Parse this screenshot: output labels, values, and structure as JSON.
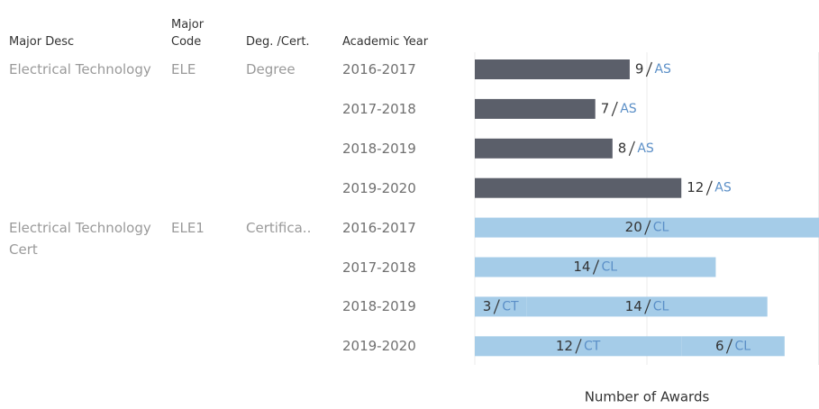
{
  "chart_data": {
    "type": "bar",
    "orientation": "horizontal",
    "stacked": true,
    "column_headers": [
      "Major Desc",
      "Major Code",
      "Deg. /Cert.",
      "Academic Year"
    ],
    "groups": [
      {
        "major_desc": "Electrical Technology",
        "major_code": "ELE",
        "deg_cert": "Degree",
        "rows": [
          0,
          1,
          2,
          3
        ]
      },
      {
        "major_desc": "Electrical Technology Cert",
        "major_code": "ELE1",
        "deg_cert": "Certifica..",
        "rows": [
          4,
          5,
          6,
          7
        ]
      }
    ],
    "categories": [
      "2016-2017",
      "2017-2018",
      "2018-2019",
      "2019-2020",
      "2016-2017",
      "2017-2018",
      "2018-2019",
      "2019-2020"
    ],
    "series": [
      {
        "name": "AS",
        "color": "#5b5f6a",
        "values": [
          9,
          7,
          8,
          12,
          null,
          null,
          null,
          null
        ]
      },
      {
        "name": "CT",
        "color": "#a5cce8",
        "values": [
          null,
          null,
          null,
          null,
          null,
          null,
          3,
          12
        ]
      },
      {
        "name": "CL",
        "color": "#a5cce8",
        "values": [
          null,
          null,
          null,
          null,
          20,
          14,
          14,
          6
        ]
      }
    ],
    "xlabel": "Number of Awards",
    "xlim": [
      0,
      20
    ],
    "xticks": [
      0,
      10,
      20
    ],
    "grid": true
  }
}
